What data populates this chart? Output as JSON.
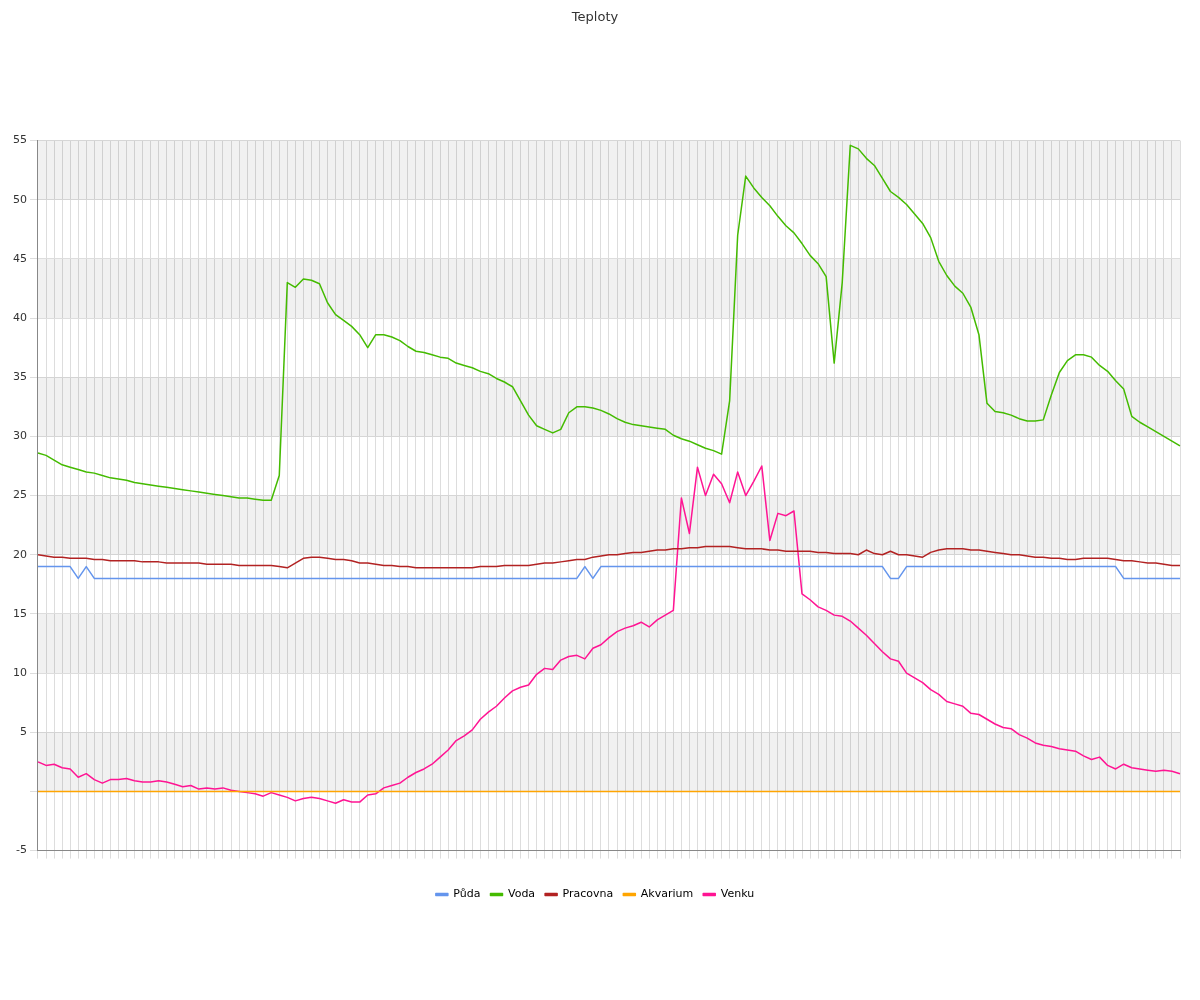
{
  "chart_data": {
    "type": "line",
    "title": "Teploty",
    "categories": [
      null,
      null,
      null,
      null,
      null,
      null,
      null,
      null,
      null,
      null,
      null,
      null,
      null,
      null,
      null,
      null,
      null,
      null,
      null,
      null,
      null,
      null,
      null,
      null,
      null,
      null,
      null,
      null,
      null,
      null,
      null,
      null,
      null,
      null,
      null,
      null,
      null,
      null,
      null,
      null,
      null,
      null,
      null,
      null,
      null,
      null,
      null,
      null,
      null,
      null,
      null,
      null,
      null,
      null,
      null,
      null,
      null,
      null,
      null,
      null,
      null,
      null,
      null,
      null,
      null,
      null,
      null,
      null,
      null,
      null,
      null,
      null,
      null,
      null,
      null,
      null,
      null,
      null,
      null,
      null,
      null,
      null,
      null,
      null,
      null,
      null,
      null,
      null,
      null,
      null,
      null,
      null,
      null,
      null,
      null,
      null,
      null,
      null,
      null,
      null,
      null,
      null,
      null,
      null,
      null,
      null,
      null,
      null,
      null,
      null,
      null,
      null,
      null,
      null,
      null,
      null,
      null,
      null,
      null,
      null,
      null,
      null,
      null,
      null,
      null,
      null,
      null,
      null,
      null,
      null,
      null,
      null,
      null,
      null,
      null,
      null,
      null,
      null,
      null,
      null,
      null,
      null,
      null
    ],
    "series": [
      {
        "name": "Půda",
        "color": "#6495ed",
        "values": [
          19,
          19,
          19,
          19,
          19,
          18,
          19,
          18,
          18,
          18,
          18,
          18,
          18,
          18,
          18,
          18,
          18,
          18,
          18,
          18,
          18,
          18,
          18,
          18,
          18,
          18,
          18,
          18,
          18,
          18,
          18,
          18,
          18,
          18,
          18,
          18,
          18,
          18,
          18,
          18,
          18,
          18,
          18,
          18,
          18,
          18,
          18,
          18,
          18,
          18,
          18,
          18,
          18,
          18,
          18,
          18,
          18,
          18,
          18,
          18,
          18,
          18,
          18,
          18,
          18,
          18,
          18,
          18,
          19,
          18,
          19,
          19,
          19,
          19,
          19,
          19,
          19,
          19,
          19,
          19,
          19,
          19,
          19,
          19,
          19,
          19,
          19,
          19,
          19,
          19,
          19,
          19,
          19,
          19,
          19,
          19,
          19,
          19,
          19,
          19,
          19,
          19,
          19,
          19,
          19,
          19,
          18,
          18,
          19,
          19,
          19,
          19,
          19,
          19,
          19,
          19,
          19,
          19,
          19,
          19,
          19,
          19,
          19,
          19,
          19,
          19,
          19,
          19,
          19,
          19,
          19,
          19,
          19,
          19,
          19,
          18,
          18,
          18,
          18,
          18,
          18,
          18,
          18
        ]
      },
      {
        "name": "Voda",
        "color": "#44bb00",
        "values": [
          28.6,
          28.4,
          28.0,
          27.6,
          27.4,
          27.2,
          27.0,
          26.9,
          26.7,
          26.5,
          26.4,
          26.3,
          26.1,
          26.0,
          25.9,
          25.8,
          25.7,
          25.6,
          25.5,
          25.4,
          25.3,
          25.2,
          25.1,
          25.0,
          24.9,
          24.8,
          24.8,
          24.7,
          24.6,
          24.6,
          26.7,
          43.0,
          42.6,
          43.3,
          43.2,
          42.9,
          41.3,
          40.3,
          39.8,
          39.3,
          38.6,
          37.5,
          38.6,
          38.6,
          38.4,
          38.1,
          37.6,
          37.2,
          37.1,
          36.9,
          36.7,
          36.6,
          36.2,
          36.0,
          35.8,
          35.5,
          35.3,
          34.9,
          34.6,
          34.2,
          33.0,
          31.8,
          30.9,
          30.6,
          30.3,
          30.6,
          32.0,
          32.5,
          32.5,
          32.4,
          32.2,
          31.9,
          31.5,
          31.2,
          31.0,
          30.9,
          30.8,
          30.7,
          30.6,
          30.1,
          29.8,
          29.6,
          29.3,
          29.0,
          28.8,
          28.5,
          33.0,
          47.0,
          52.0,
          51.0,
          50.2,
          49.5,
          48.6,
          47.8,
          47.2,
          46.3,
          45.3,
          44.6,
          43.5,
          36.2,
          43.0,
          54.6,
          54.3,
          53.5,
          52.9,
          51.8,
          50.7,
          50.2,
          49.6,
          48.8,
          48.0,
          46.8,
          44.8,
          43.6,
          42.7,
          42.1,
          40.9,
          38.6,
          32.8,
          32.1,
          32.0,
          31.8,
          31.5,
          31.3,
          31.3,
          31.4,
          33.5,
          35.4,
          36.4,
          36.9,
          36.9,
          36.7,
          36.0,
          35.5,
          34.7,
          34.0,
          31.7,
          31.2,
          30.8,
          30.4,
          30.0,
          29.6,
          29.2
        ]
      },
      {
        "name": "Pracovna",
        "color": "#b22222",
        "values": [
          20.0,
          19.9,
          19.8,
          19.8,
          19.7,
          19.7,
          19.7,
          19.6,
          19.6,
          19.5,
          19.5,
          19.5,
          19.5,
          19.4,
          19.4,
          19.4,
          19.3,
          19.3,
          19.3,
          19.3,
          19.3,
          19.2,
          19.2,
          19.2,
          19.2,
          19.1,
          19.1,
          19.1,
          19.1,
          19.1,
          19.0,
          18.9,
          19.3,
          19.7,
          19.8,
          19.8,
          19.7,
          19.6,
          19.6,
          19.5,
          19.3,
          19.3,
          19.2,
          19.1,
          19.1,
          19.0,
          19.0,
          18.9,
          18.9,
          18.9,
          18.9,
          18.9,
          18.9,
          18.9,
          18.9,
          19.0,
          19.0,
          19.0,
          19.1,
          19.1,
          19.1,
          19.1,
          19.2,
          19.3,
          19.3,
          19.4,
          19.5,
          19.6,
          19.6,
          19.8,
          19.9,
          20.0,
          20.0,
          20.1,
          20.2,
          20.2,
          20.3,
          20.4,
          20.4,
          20.5,
          20.5,
          20.6,
          20.6,
          20.7,
          20.7,
          20.7,
          20.7,
          20.6,
          20.5,
          20.5,
          20.5,
          20.4,
          20.4,
          20.3,
          20.3,
          20.3,
          20.3,
          20.2,
          20.2,
          20.1,
          20.1,
          20.1,
          20.0,
          20.4,
          20.1,
          20.0,
          20.3,
          20.0,
          20.0,
          19.9,
          19.8,
          20.2,
          20.4,
          20.5,
          20.5,
          20.5,
          20.4,
          20.4,
          20.3,
          20.2,
          20.1,
          20.0,
          20.0,
          19.9,
          19.8,
          19.8,
          19.7,
          19.7,
          19.6,
          19.6,
          19.7,
          19.7,
          19.7,
          19.7,
          19.6,
          19.5,
          19.5,
          19.4,
          19.3,
          19.3,
          19.2,
          19.1,
          19.1
        ]
      },
      {
        "name": "Akvarium",
        "color": "#ffa500",
        "values": [
          0,
          0,
          0,
          0,
          0,
          0,
          0,
          0,
          0,
          0,
          0,
          0,
          0,
          0,
          0,
          0,
          0,
          0,
          0,
          0,
          0,
          0,
          0,
          0,
          0,
          0,
          0,
          0,
          0,
          0,
          0,
          0,
          0,
          0,
          0,
          0,
          0,
          0,
          0,
          0,
          0,
          0,
          0,
          0,
          0,
          0,
          0,
          0,
          0,
          0,
          0,
          0,
          0,
          0,
          0,
          0,
          0,
          0,
          0,
          0,
          0,
          0,
          0,
          0,
          0,
          0,
          0,
          0,
          0,
          0,
          0,
          0,
          0,
          0,
          0,
          0,
          0,
          0,
          0,
          0,
          0,
          0,
          0,
          0,
          0,
          0,
          0,
          0,
          0,
          0,
          0,
          0,
          0,
          0,
          0,
          0,
          0,
          0,
          0,
          0,
          0,
          0,
          0,
          0,
          0,
          0,
          0,
          0,
          0,
          0,
          0,
          0,
          0,
          0,
          0,
          0,
          0,
          0,
          0,
          0,
          0,
          0,
          0,
          0,
          0,
          0,
          0,
          0,
          0,
          0,
          0,
          0,
          0,
          0,
          0,
          0,
          0,
          0,
          0,
          0,
          0,
          0,
          0
        ]
      },
      {
        "name": "Venku",
        "color": "#ff1493",
        "values": [
          2.5,
          2.2,
          2.3,
          2.0,
          1.9,
          1.2,
          1.5,
          1.0,
          0.7,
          1.0,
          1.0,
          1.1,
          0.9,
          0.8,
          0.8,
          0.9,
          0.8,
          0.6,
          0.4,
          0.5,
          0.2,
          0.3,
          0.2,
          0.3,
          0.1,
          0.0,
          -0.1,
          -0.2,
          -0.4,
          -0.1,
          -0.3,
          -0.5,
          -0.8,
          -0.6,
          -0.5,
          -0.6,
          -0.8,
          -1.0,
          -0.7,
          -0.9,
          -0.9,
          -0.3,
          -0.2,
          0.3,
          0.5,
          0.7,
          1.2,
          1.6,
          1.9,
          2.3,
          2.9,
          3.5,
          4.3,
          4.7,
          5.2,
          6.1,
          6.7,
          7.2,
          7.9,
          8.5,
          8.8,
          9.0,
          9.9,
          10.4,
          10.3,
          11.1,
          11.4,
          11.5,
          11.2,
          12.1,
          12.4,
          13.0,
          13.5,
          13.8,
          14.0,
          14.3,
          13.9,
          14.5,
          14.9,
          15.3,
          24.8,
          21.8,
          27.4,
          25.0,
          26.8,
          26.0,
          24.4,
          27.0,
          25.0,
          26.2,
          27.5,
          21.2,
          23.5,
          23.3,
          23.7,
          16.7,
          16.2,
          15.6,
          15.3,
          14.9,
          14.8,
          14.4,
          13.8,
          13.2,
          12.5,
          11.8,
          11.2,
          11.0,
          10.0,
          9.6,
          9.2,
          8.6,
          8.2,
          7.6,
          7.4,
          7.2,
          6.6,
          6.5,
          6.1,
          5.7,
          5.4,
          5.3,
          4.8,
          4.5,
          4.1,
          3.9,
          3.8,
          3.6,
          3.5,
          3.4,
          3.0,
          2.7,
          2.9,
          2.2,
          1.9,
          2.3,
          2.0,
          1.9,
          1.8,
          1.7,
          1.8,
          1.7,
          1.5
        ]
      }
    ],
    "ylim": [
      -5,
      55
    ],
    "yticks": [
      -5,
      {
        "value": 0,
        "label": null
      },
      5,
      10,
      15,
      20,
      25,
      30,
      35,
      40,
      45,
      50,
      55
    ],
    "grid": true,
    "legend": "bottom"
  }
}
